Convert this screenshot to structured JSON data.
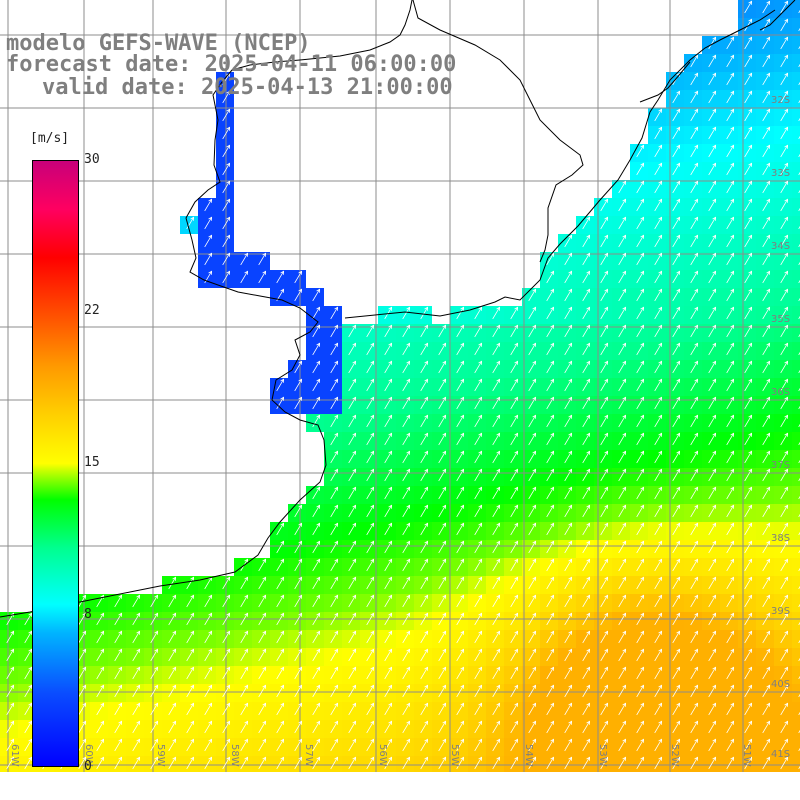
{
  "title": {
    "line1": "modelo GEFS-WAVE (NCEP)",
    "line2": "forecast date: 2025-04-11 06:00:00",
    "line3": "valid date: 2025-04-13 21:00:00"
  },
  "colorbar": {
    "unit": "[m/s]",
    "min": 0,
    "max": 30,
    "ticks": [
      "30",
      "22",
      "15",
      "8",
      "0"
    ],
    "tick_values": [
      30,
      22,
      15,
      8,
      0
    ],
    "colors": [
      "#0000ff",
      "#00b4ff",
      "#00ffff",
      "#00ff00",
      "#ffff00",
      "#ff9a00",
      "#ff0000",
      "#c8007a"
    ]
  },
  "map": {
    "lon_range": [
      -61,
      -50.5
    ],
    "lat_range": [
      -41.5,
      -30
    ],
    "lat_labels": [
      "32S",
      "33S",
      "34S",
      "35S",
      "36S",
      "37S",
      "38S",
      "39S",
      "40S",
      "41S"
    ],
    "lon_labels": [
      "61W",
      "60W",
      "59W",
      "58W",
      "57W",
      "56W",
      "55W",
      "54W",
      "53W",
      "52W",
      "51W"
    ],
    "land_color": "#ffffff",
    "coast_color": "#000000",
    "grid_color": "#8c8c8c",
    "arrow_color": "#ffffff"
  }
}
